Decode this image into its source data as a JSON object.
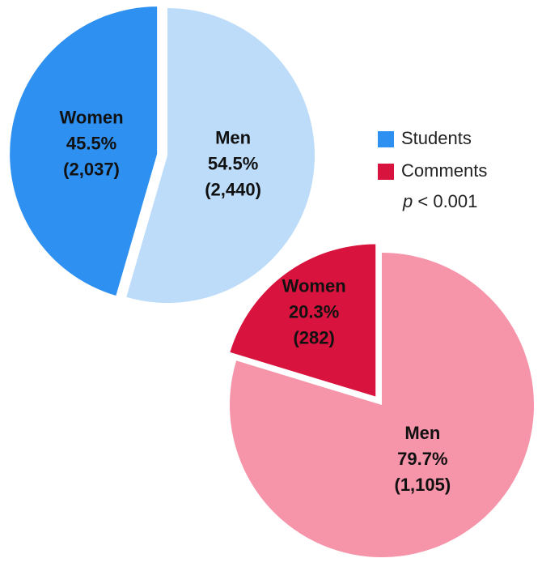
{
  "chart_data": [
    {
      "type": "pie",
      "legend_label": "Students",
      "legend_color": "#2e90f0",
      "categories": [
        "Women",
        "Men"
      ],
      "values": [
        45.5,
        54.5
      ],
      "value_labels": [
        "45.5%",
        "54.5%"
      ],
      "counts": [
        2037,
        2440
      ],
      "count_labels": [
        "(2,037)",
        "(2,440)"
      ],
      "colors": [
        "#2e90f0",
        "#bcdcfa"
      ],
      "explode": [
        true,
        false
      ]
    },
    {
      "type": "pie",
      "legend_label": "Comments",
      "legend_color": "#d8143e",
      "categories": [
        "Women",
        "Men"
      ],
      "values": [
        20.3,
        79.7
      ],
      "value_labels": [
        "20.3%",
        "79.7%"
      ],
      "counts": [
        282,
        1105
      ],
      "count_labels": [
        "(282)",
        "(1,105)"
      ],
      "colors": [
        "#d8143e",
        "#f694aa"
      ],
      "explode": [
        true,
        false
      ]
    }
  ],
  "annotation": {
    "symbol": "p",
    "text": "< 0.001"
  }
}
